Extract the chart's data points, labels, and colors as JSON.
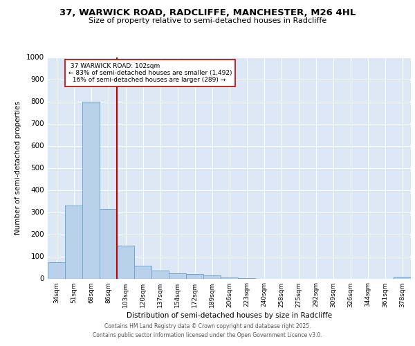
{
  "title1": "37, WARWICK ROAD, RADCLIFFE, MANCHESTER, M26 4HL",
  "title2": "Size of property relative to semi-detached houses in Radcliffe",
  "xlabel": "Distribution of semi-detached houses by size in Radcliffe",
  "ylabel": "Number of semi-detached properties",
  "categories": [
    "34sqm",
    "51sqm",
    "68sqm",
    "86sqm",
    "103sqm",
    "120sqm",
    "137sqm",
    "154sqm",
    "172sqm",
    "189sqm",
    "206sqm",
    "223sqm",
    "240sqm",
    "258sqm",
    "275sqm",
    "292sqm",
    "309sqm",
    "326sqm",
    "344sqm",
    "361sqm",
    "378sqm"
  ],
  "values": [
    75,
    330,
    800,
    315,
    150,
    57,
    35,
    25,
    20,
    13,
    5,
    2,
    0,
    0,
    0,
    0,
    0,
    0,
    0,
    0,
    8
  ],
  "bar_color": "#b8d0ea",
  "bar_edge_color": "#6fa8d0",
  "highlight_index": 4,
  "highlight_color": "#c00000",
  "property_label": "37 WARWICK ROAD: 102sqm",
  "pct_smaller": "83%",
  "n_smaller": "1,492",
  "pct_larger": "16%",
  "n_larger": "289",
  "annotation_box_color": "#c00000",
  "ylim": [
    0,
    1000
  ],
  "yticks": [
    0,
    100,
    200,
    300,
    400,
    500,
    600,
    700,
    800,
    900,
    1000
  ],
  "plot_bg_color": "#dce8f5",
  "footer1": "Contains HM Land Registry data © Crown copyright and database right 2025.",
  "footer2": "Contains public sector information licensed under the Open Government Licence v3.0."
}
